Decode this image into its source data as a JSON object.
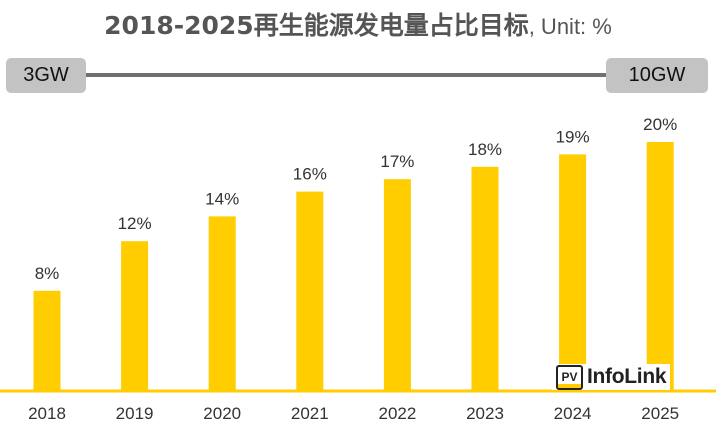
{
  "colors": {
    "bar": "#ffcd00",
    "axis": "#ffcd00",
    "title": "#555555",
    "range_line": "#707070",
    "range_box": "#c3c3c3",
    "labels": "#333333"
  },
  "title": {
    "main": "2018-2025再生能源发电量占比目标",
    "unit": ", Unit: %"
  },
  "range": {
    "start_label": "3GW",
    "end_label": "10GW"
  },
  "logo": {
    "mark": "PV",
    "text": "InfoLink"
  },
  "chart_data": {
    "type": "bar",
    "title": "2018-2025再生能源发电量占比目标, Unit: %",
    "categories": [
      "2018",
      "2019",
      "2020",
      "2021",
      "2022",
      "2023",
      "2024",
      "2025"
    ],
    "values": [
      8,
      12,
      14,
      16,
      17,
      18,
      19,
      20
    ],
    "data_labels": [
      "8%",
      "12%",
      "14%",
      "16%",
      "17%",
      "18%",
      "19%",
      "20%"
    ],
    "xlabel": "",
    "ylabel": "",
    "ylim": [
      0,
      22
    ],
    "grid": false,
    "legend": "none"
  }
}
